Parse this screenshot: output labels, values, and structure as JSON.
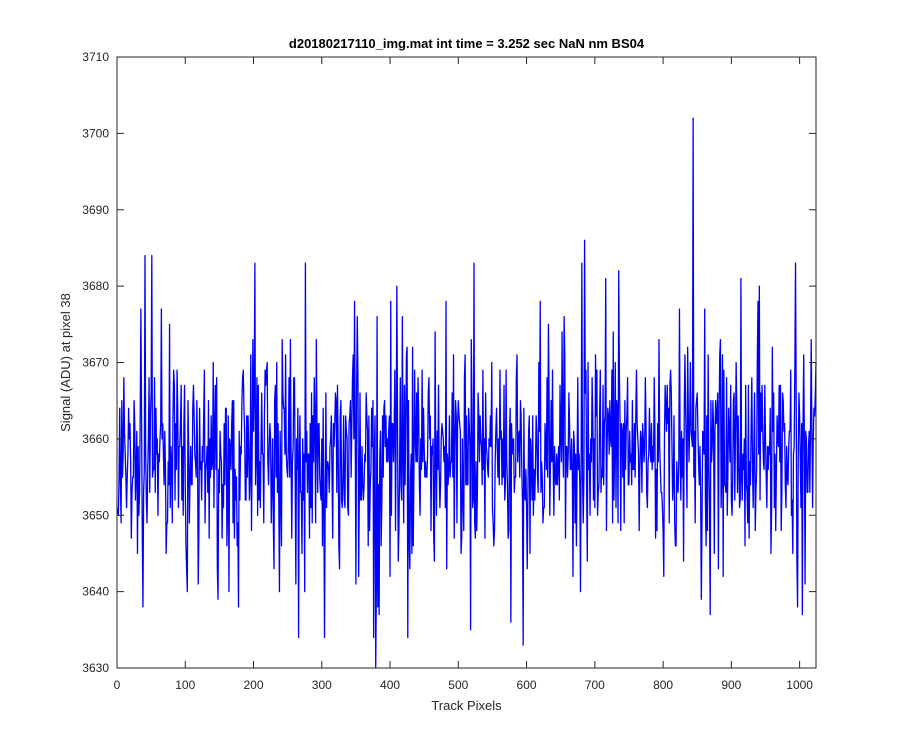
{
  "chart_data": {
    "type": "line",
    "title": "d20180217110_img.mat int time = 3.252 sec  NaN nm BS04",
    "xlabel": "Track Pixels",
    "ylabel": "Signal (ADU) at pixel 38",
    "xlim": [
      0,
      1024
    ],
    "ylim": [
      3630,
      3710
    ],
    "xticks": [
      0,
      100,
      200,
      300,
      400,
      500,
      600,
      700,
      800,
      900,
      1000
    ],
    "yticks": [
      3630,
      3640,
      3650,
      3660,
      3670,
      3680,
      3690,
      3700,
      3710
    ],
    "grid": false,
    "legend": "none",
    "series": [
      {
        "color": "#0000ff",
        "x_start": 1,
        "x_step": 1,
        "mean": 3658.5,
        "std": 7.0,
        "spikes": [
          {
            "x": 41,
            "y": 3684
          },
          {
            "x": 51,
            "y": 3684
          },
          {
            "x": 38,
            "y": 3638
          },
          {
            "x": 202,
            "y": 3683
          },
          {
            "x": 266,
            "y": 3634
          },
          {
            "x": 276,
            "y": 3683
          },
          {
            "x": 304,
            "y": 3634
          },
          {
            "x": 379,
            "y": 3630
          },
          {
            "x": 376,
            "y": 3634
          },
          {
            "x": 426,
            "y": 3634
          },
          {
            "x": 595,
            "y": 3633
          },
          {
            "x": 577,
            "y": 3636
          },
          {
            "x": 685,
            "y": 3686
          },
          {
            "x": 681,
            "y": 3683
          },
          {
            "x": 844,
            "y": 3702
          },
          {
            "x": 914,
            "y": 3681
          },
          {
            "x": 994,
            "y": 3683
          },
          {
            "x": 1004,
            "y": 3637
          },
          {
            "x": 997,
            "y": 3638
          },
          {
            "x": 178,
            "y": 3638
          },
          {
            "x": 148,
            "y": 3639
          },
          {
            "x": 35,
            "y": 3677
          },
          {
            "x": 348,
            "y": 3678
          },
          {
            "x": 410,
            "y": 3680
          },
          {
            "x": 523,
            "y": 3683
          },
          {
            "x": 716,
            "y": 3681
          },
          {
            "x": 735,
            "y": 3682
          },
          {
            "x": 861,
            "y": 3677
          },
          {
            "x": 941,
            "y": 3680
          }
        ]
      }
    ]
  }
}
